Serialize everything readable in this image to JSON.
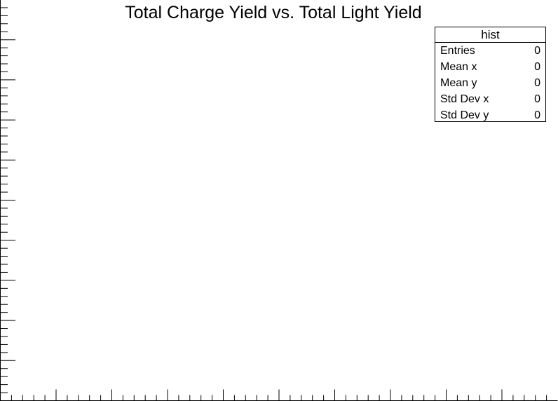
{
  "chart_data": {
    "type": "heatmap",
    "title": "Total Charge Yield vs. Total Light Yield",
    "xlabel": "",
    "ylabel": "",
    "entries": 0,
    "series": []
  },
  "stats_box": {
    "header": "hist",
    "rows": [
      {
        "label": "Entries",
        "value": "0"
      },
      {
        "label": "Mean x",
        "value": "0"
      },
      {
        "label": "Mean y",
        "value": "0"
      },
      {
        "label": "Std Dev x",
        "value": "0"
      },
      {
        "label": "Std Dev y",
        "value": "0"
      }
    ]
  }
}
